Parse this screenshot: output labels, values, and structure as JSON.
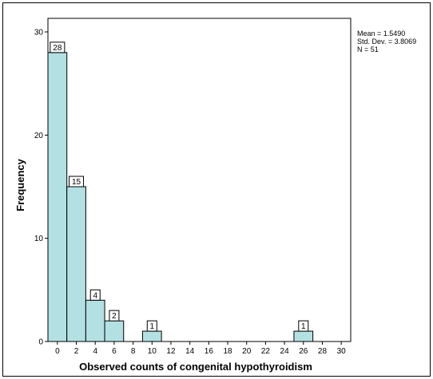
{
  "chart_data": {
    "type": "bar",
    "subtype": "histogram",
    "title": "",
    "xlabel": "Observed counts of congenital hypothyroidism",
    "ylabel": "Frequency",
    "x_ticks": [
      "0",
      "2",
      "4",
      "6",
      "8",
      "10",
      "12",
      "14",
      "16",
      "18",
      "20",
      "22",
      "24",
      "26",
      "28",
      "30"
    ],
    "y_ticks": [
      "0",
      "10",
      "20",
      "30"
    ],
    "xlim": [
      -1,
      31
    ],
    "ylim": [
      0,
      30
    ],
    "bin_width": 2,
    "bins": [
      {
        "start": -1,
        "end": 1,
        "value": 28,
        "label": "28"
      },
      {
        "start": 1,
        "end": 3,
        "value": 15,
        "label": "15"
      },
      {
        "start": 3,
        "end": 5,
        "value": 4,
        "label": "4"
      },
      {
        "start": 5,
        "end": 7,
        "value": 2,
        "label": "2"
      },
      {
        "start": 9,
        "end": 11,
        "value": 1,
        "label": "1"
      },
      {
        "start": 25,
        "end": 27,
        "value": 1,
        "label": "1"
      }
    ],
    "stats": [
      "Mean = 1.5490",
      "Std. Dev. = 3.8069",
      "N = 51"
    ],
    "grid": false,
    "colors": {
      "bar_fill": "#b3e0e3",
      "bar_stroke": "#000000",
      "axis": "#000000",
      "frame": "#000000"
    }
  }
}
